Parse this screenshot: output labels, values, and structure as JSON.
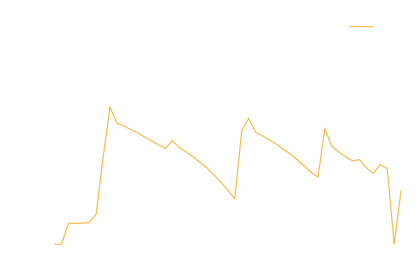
{
  "chart_data": {
    "type": "line",
    "x": [
      0,
      1,
      2,
      3,
      4,
      5,
      6,
      7,
      8,
      9,
      10,
      11,
      12,
      13,
      14,
      15,
      16,
      17,
      18,
      19,
      20,
      21,
      22,
      23,
      24,
      25,
      26,
      27,
      28,
      29,
      30,
      31,
      32,
      33,
      34,
      35,
      36,
      37,
      38,
      39,
      40,
      41,
      42,
      43,
      44,
      45,
      46,
      47,
      48,
      49,
      50
    ],
    "xlim": [
      0,
      50
    ],
    "ylim": [
      0,
      380
    ],
    "series": [
      {
        "color": "#f0a30a",
        "values": [
          31,
          31,
          61,
          61,
          61,
          62,
          74,
          155,
          227,
          204,
          200,
          195,
          190,
          184,
          179,
          173,
          168,
          179,
          169,
          163,
          156,
          148,
          140,
          130,
          120,
          108,
          96,
          193,
          211,
          191,
          186,
          180,
          174,
          167,
          160,
          152,
          143,
          134,
          127,
          196,
          171,
          163,
          156,
          150,
          152,
          140,
          132,
          145,
          139,
          31,
          108
        ]
      }
    ],
    "legend": "upper right",
    "grid": false
  }
}
